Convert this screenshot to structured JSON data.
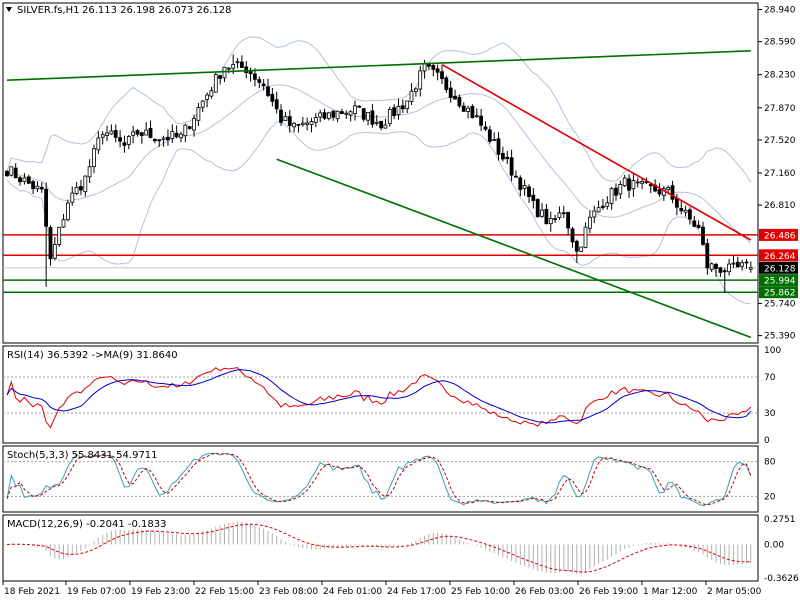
{
  "header": {
    "symbol_label": "SILVER.fs,H1",
    "ohlc": "26.113 26.198 26.073 26.128"
  },
  "colors": {
    "background": "#ffffff",
    "bull": "#000000",
    "bull_body": "#ffffff",
    "bear": "#000000",
    "bollinger": "#b4c2dd",
    "green_line": "#007000",
    "red_line": "#e00000",
    "rsi": "#e00000",
    "rsi_ma": "#0000c8",
    "stoch_main": "#3aa0b0",
    "stoch_signal": "#c00000",
    "macd_hist": "#b0b0b0",
    "macd_signal": "#e00000",
    "current_price_label": "#000000",
    "grid_dash": "#a0a0a0"
  },
  "chart_data": [
    {
      "type": "candlestick",
      "panel": "price",
      "title": "SILVER.fs,H1",
      "ohlc_last": {
        "open": 26.113,
        "high": 26.198,
        "low": 26.073,
        "close": 26.128
      },
      "y_ticks": [
        "28.940",
        "28.590",
        "28.230",
        "27.870",
        "27.520",
        "27.160",
        "26.810",
        "25.740",
        "25.390"
      ],
      "ylim": [
        25.32,
        29.0
      ],
      "price_labels": [
        {
          "value": "26.486",
          "kind": "red-horizontal"
        },
        {
          "value": "26.264",
          "kind": "red-horizontal"
        },
        {
          "value": "26.128",
          "kind": "current"
        },
        {
          "value": "25.994",
          "kind": "green-horizontal"
        },
        {
          "value": "25.862",
          "kind": "green-horizontal"
        }
      ],
      "horizontal_levels": [
        26.486,
        26.264,
        25.994,
        25.862
      ],
      "trendlines": [
        {
          "color": "green",
          "from": {
            "bar": 0,
            "price": 28.17
          },
          "to": {
            "bar": 171,
            "price": 28.49
          }
        },
        {
          "color": "red",
          "from": {
            "bar": 100,
            "price": 28.34
          },
          "to": {
            "bar": 171,
            "price": 26.43
          }
        },
        {
          "color": "green",
          "from": {
            "bar": 62,
            "price": 27.31
          },
          "to": {
            "bar": 171,
            "price": 25.37
          }
        }
      ],
      "candles_anchor_closes": [
        [
          0,
          27.2
        ],
        [
          8,
          26.95
        ],
        [
          10,
          26.2
        ],
        [
          14,
          26.85
        ],
        [
          18,
          27.1
        ],
        [
          22,
          27.63
        ],
        [
          27,
          27.45
        ],
        [
          30,
          27.6
        ],
        [
          35,
          27.55
        ],
        [
          40,
          27.55
        ],
        [
          46,
          28.02
        ],
        [
          50,
          28.33
        ],
        [
          55,
          28.3
        ],
        [
          59,
          28.12
        ],
        [
          63,
          27.75
        ],
        [
          66,
          27.65
        ],
        [
          70,
          27.72
        ],
        [
          76,
          27.82
        ],
        [
          80,
          27.85
        ],
        [
          86,
          27.7
        ],
        [
          92,
          27.95
        ],
        [
          96,
          28.3
        ],
        [
          99,
          28.2
        ],
        [
          103,
          28.0
        ],
        [
          108,
          27.75
        ],
        [
          113,
          27.4
        ],
        [
          118,
          27.05
        ],
        [
          121,
          26.8
        ],
        [
          125,
          26.6
        ],
        [
          128,
          26.75
        ],
        [
          131,
          26.3
        ],
        [
          134,
          26.65
        ],
        [
          137,
          26.85
        ],
        [
          142,
          27.05
        ],
        [
          146,
          27.0
        ],
        [
          152,
          26.95
        ],
        [
          156,
          26.7
        ],
        [
          159,
          26.55
        ],
        [
          161,
          26.15
        ],
        [
          166,
          26.1
        ],
        [
          169,
          26.13
        ]
      ]
    },
    {
      "type": "line",
      "panel": "rsi",
      "title": "RSI(14) 36.5392 ->MA(9) 31.8640",
      "y_ticks": [
        "100",
        "70",
        "30",
        "0"
      ],
      "ylim": [
        0,
        100
      ],
      "levels": [
        70,
        30
      ],
      "series": [
        {
          "name": "RSI(14)",
          "value": 36.5392
        },
        {
          "name": "MA(9)",
          "value": 31.864
        }
      ]
    },
    {
      "type": "line",
      "panel": "stochastic",
      "title": "Stoch(5,3,3) 55.8431 54.9711",
      "y_ticks": [
        "80",
        "20"
      ],
      "ylim": [
        0,
        100
      ],
      "levels": [
        80,
        20
      ],
      "series": [
        {
          "name": "main",
          "value": 55.8431
        },
        {
          "name": "signal",
          "value": 54.9711
        }
      ]
    },
    {
      "type": "bar",
      "panel": "macd",
      "title": "MACD(12,26,9) -0.2041 -0.1833",
      "y_ticks": [
        "0.2751",
        "0.00",
        "-0.3626"
      ],
      "ylim": [
        -0.3626,
        0.2751
      ],
      "series": [
        {
          "name": "MACD",
          "value": -0.2041
        },
        {
          "name": "signal",
          "value": -0.1833
        }
      ]
    }
  ],
  "time_axis": [
    "18 Feb 2021",
    "19 Feb 07:00",
    "19 Feb 23:00",
    "22 Feb 15:00",
    "23 Feb 08:00",
    "24 Feb 01:00",
    "24 Feb 17:00",
    "25 Feb 10:00",
    "26 Feb 03:00",
    "26 Feb 19:00",
    "1 Mar 12:00",
    "2 Mar 05:00"
  ]
}
